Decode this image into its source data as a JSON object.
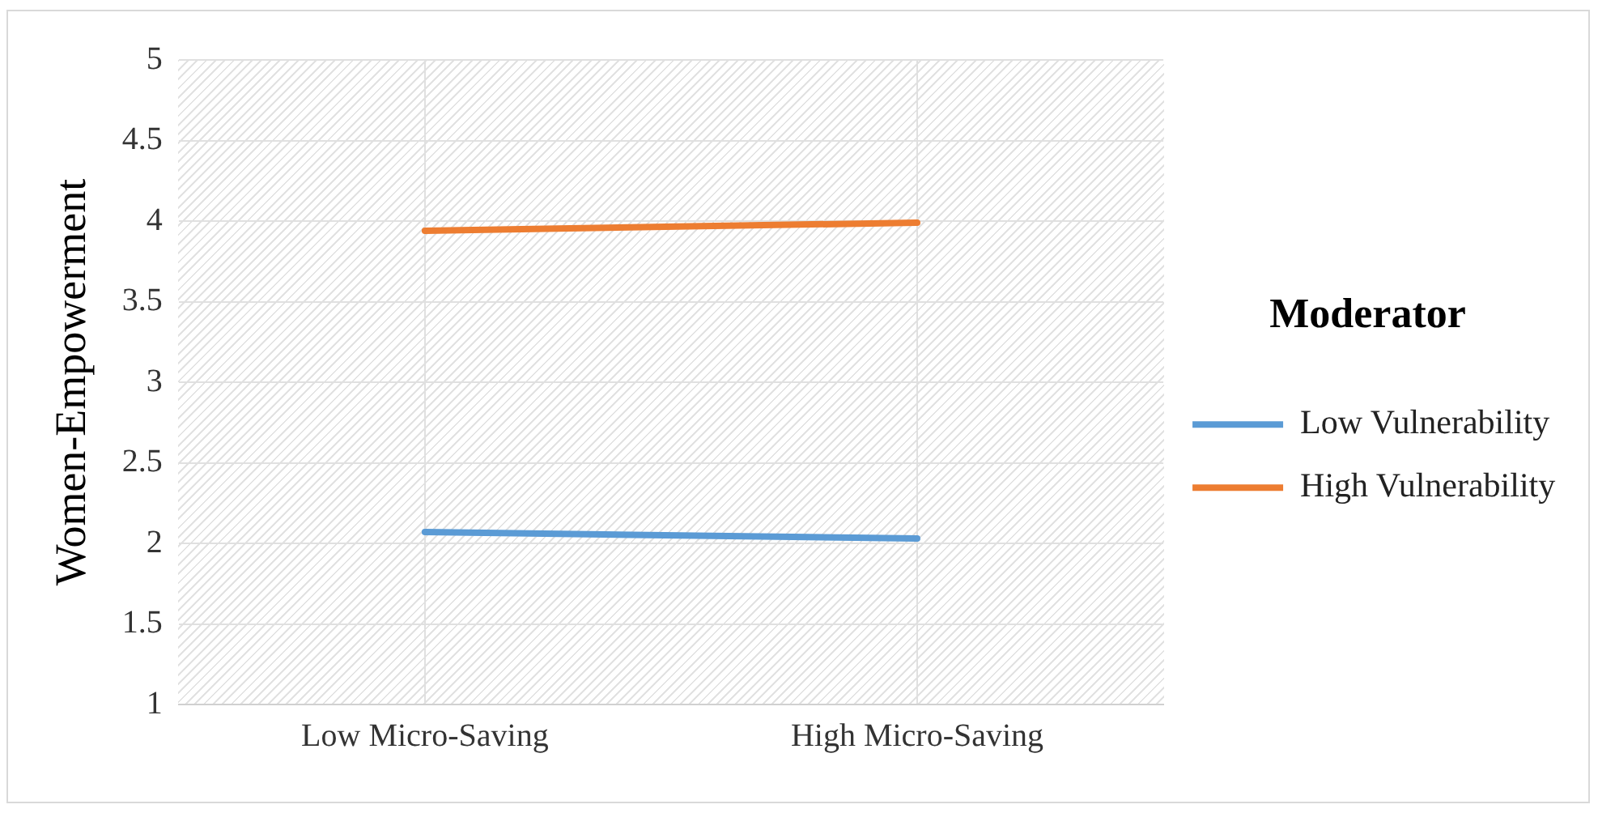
{
  "chart_data": {
    "type": "line",
    "ylabel": "Women-Empowerment",
    "legend_title": "Moderator",
    "categories": [
      "Low Micro-Saving",
      "High Micro-Saving"
    ],
    "series": [
      {
        "name": "Low Vulnerability",
        "color": "#5b9bd5",
        "values": [
          2.07,
          2.03
        ]
      },
      {
        "name": "High Vulnerability",
        "color": "#ed7d31",
        "values": [
          3.94,
          3.99
        ]
      }
    ],
    "ylim": [
      1,
      5
    ],
    "yticks": [
      1,
      1.5,
      2,
      2.5,
      3,
      3.5,
      4,
      4.5,
      5
    ],
    "grid": true,
    "legend": "right",
    "marker": "none"
  }
}
